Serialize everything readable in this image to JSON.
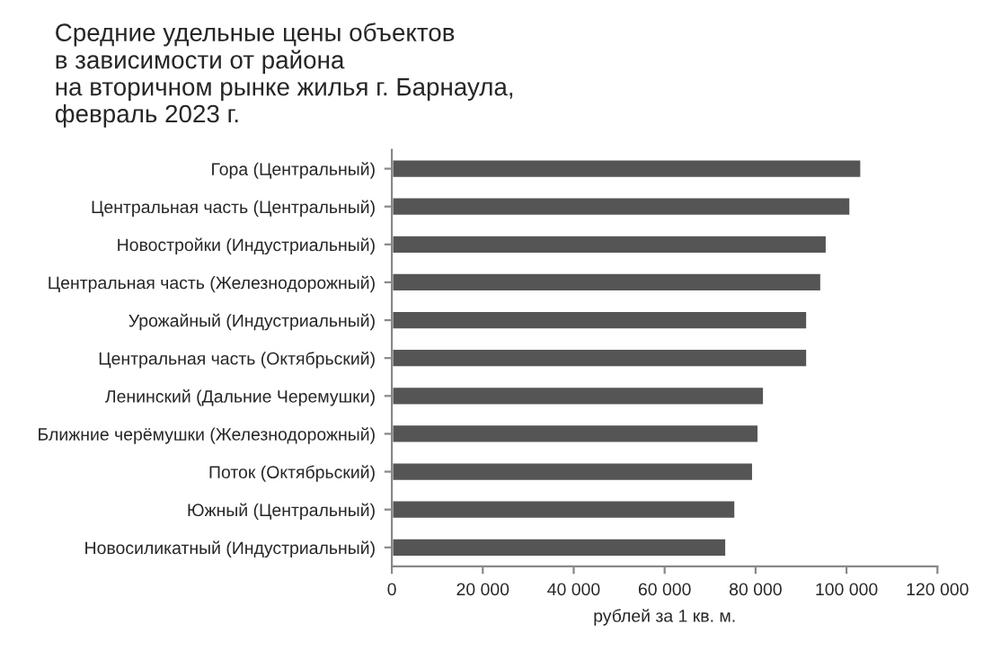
{
  "chart_data": {
    "type": "bar",
    "orientation": "horizontal",
    "title": "Средние удельные цены объектов\nв зависимости от района\nна вторичном рынке жилья г. Барнаула,\nфевраль 2023 г.",
    "xlabel": "рублей за 1 кв. м.",
    "categories": [
      "Гора (Центральный)",
      "Центральная часть (Центральный)",
      "Новостройки (Индустриальный)",
      "Центральная часть (Железнодорожный)",
      "Урожайный (Индустриальный)",
      "Центральная часть (Октябрьский)",
      "Ленинский (Дальние Черемушки)",
      "Ближние черёмушки (Железнодорожный)",
      "Поток (Октябрьский)",
      "Южный (Центральный)",
      "Новосиликатный (Индустриальный)"
    ],
    "values": [
      103300,
      100900,
      95700,
      94500,
      91400,
      91400,
      81900,
      80700,
      79500,
      75600,
      73600
    ],
    "color": "#555555",
    "xlim": [
      0,
      120000
    ],
    "xticks": [
      0,
      {
        "value": 20000,
        "label": "20 000"
      },
      {
        "value": 40000,
        "label": "40 000"
      },
      {
        "value": 60000,
        "label": "60 000"
      },
      {
        "value": 80000,
        "label": "80 000"
      },
      {
        "value": 100000,
        "label": "100 000"
      },
      {
        "value": 120000,
        "label": "120 000"
      }
    ],
    "grid": false
  }
}
